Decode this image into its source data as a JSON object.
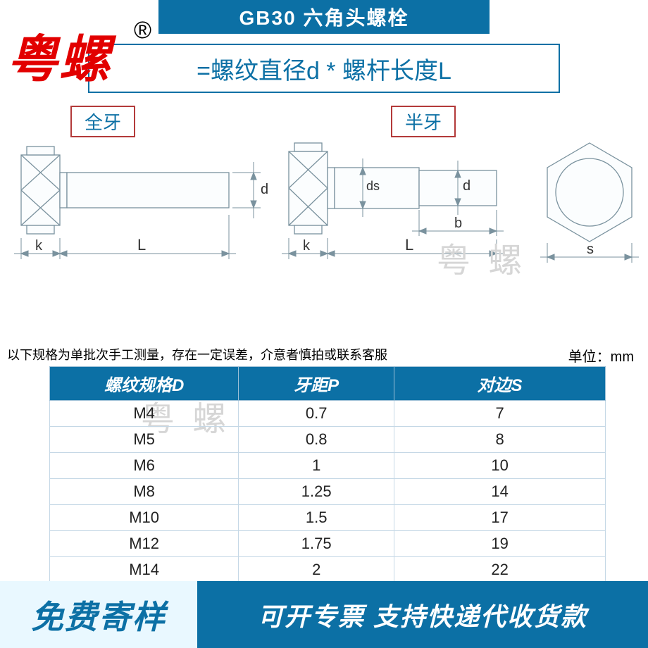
{
  "header": {
    "title": "GB30 六角头螺栓"
  },
  "brand": {
    "logo_text": "粤螺",
    "registered": "®"
  },
  "formula": {
    "text": "=螺纹直径d * 螺杆长度L"
  },
  "tags": {
    "full": "全牙",
    "half": "半牙"
  },
  "diagram_labels": {
    "d": "d",
    "ds": "ds",
    "b": "b",
    "k": "k",
    "L": "L",
    "s": "s"
  },
  "watermark_gray": "粤 螺",
  "note": "以下规格为单批次手工测量，存在一定误差，介意者慎拍或联系客服",
  "unit": "单位：mm",
  "table": {
    "columns": [
      "螺纹规格D",
      "牙距P",
      "对边S"
    ],
    "rows": [
      [
        "M4",
        "0.7",
        "7"
      ],
      [
        "M5",
        "0.8",
        "8"
      ],
      [
        "M6",
        "1",
        "10"
      ],
      [
        "M8",
        "1.25",
        "14"
      ],
      [
        "M10",
        "1.5",
        "17"
      ],
      [
        "M12",
        "1.75",
        "19"
      ],
      [
        "M14",
        "2",
        "22"
      ]
    ],
    "header_bg": "#0c70a5",
    "header_fg": "#ffffff",
    "border_color": "#c5d8e6"
  },
  "footer": {
    "left": "免费寄样",
    "right": "可开专票 支持快递代收货款",
    "left_bg": "#e9f8ff",
    "right_bg": "#0c70a5"
  },
  "colors": {
    "brand_blue": "#0c70a5",
    "brand_red": "#e20000",
    "box_red": "#b33a3a",
    "diagram_stroke": "#7a929e"
  }
}
